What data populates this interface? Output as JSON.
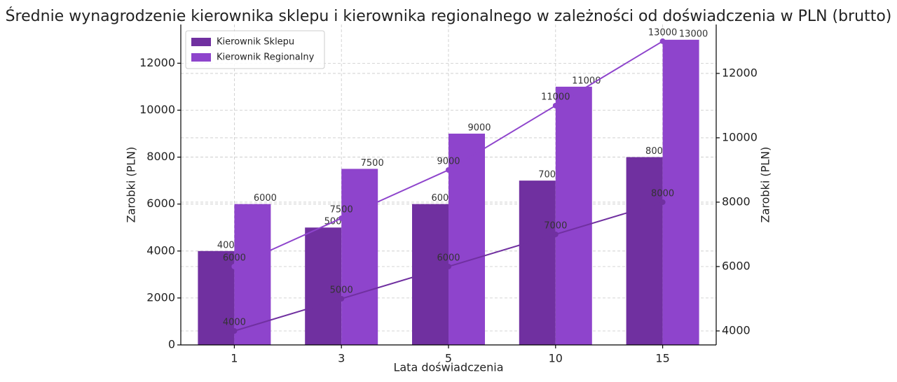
{
  "chart_data": {
    "type": "bar",
    "title": "Średnie wynagrodzenie kierownika sklepu i kierownika regionalnego w zależności od doświadczenia w PLN (brutto)",
    "x_label": "Lata doświadczenia",
    "y_label": "Zarobki (PLN)",
    "y2_label": "Zarobki (PLN)",
    "categories": [
      "1",
      "3",
      "5",
      "10",
      "15"
    ],
    "series": [
      {
        "name": "Kierownik Sklepu",
        "color": "#7030a0",
        "values": [
          4000,
          5000,
          6000,
          7000,
          8000
        ]
      },
      {
        "name": "Kierownik Regionalny",
        "color": "#8e44cc",
        "values": [
          6000,
          7500,
          9000,
          11000,
          13000
        ]
      },
      {
        "type": "line",
        "axis": "y2",
        "color": "#7030a0",
        "values": [
          4000,
          5000,
          6000,
          7000,
          8000
        ]
      },
      {
        "type": "line",
        "axis": "y2",
        "color": "#8e44cc",
        "values": [
          6000,
          7500,
          9000,
          11000,
          13000
        ]
      }
    ],
    "ylim": [
      0,
      13650
    ],
    "yticks": [
      0,
      2000,
      4000,
      6000,
      8000,
      10000,
      12000
    ],
    "y2lim": [
      3565,
      13520
    ],
    "y2ticks": [
      4000,
      6000,
      8000,
      10000,
      12000
    ],
    "grid": true,
    "legend": "upper left"
  }
}
